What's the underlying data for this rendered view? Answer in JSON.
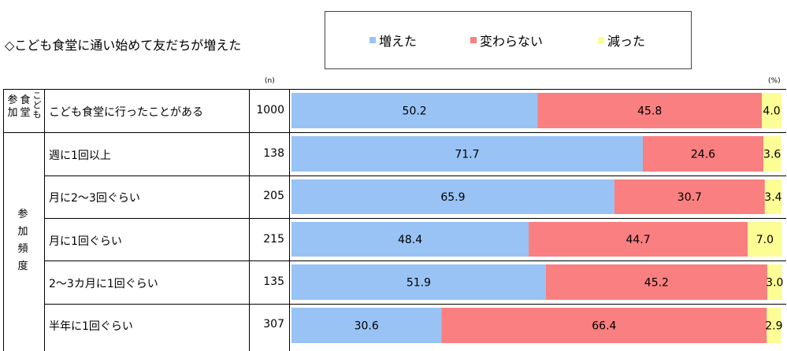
{
  "title": "◇こども食堂に通い始めて友だちが増えた",
  "legend": [
    {
      "label": "増えた",
      "color": "#99c3f4"
    },
    {
      "label": "変わらない",
      "color": "#f97f80"
    },
    {
      "label": "減った",
      "color": "#fdfd96"
    }
  ],
  "unit_n": "(n)",
  "unit_pct": "(%)",
  "group_top_a": "参加",
  "group_top_b": "食堂",
  "group_top_c": "こども",
  "group_freq": "参加頻度",
  "chart_data": {
    "type": "bar",
    "orientation": "horizontal",
    "stacked": true,
    "xlim": [
      0,
      100
    ],
    "categories": [
      "こども食堂に行ったことがある",
      "週に1回以上",
      "月に2～3回ぐらい",
      "月に1回ぐらい",
      "2～3カ月に1回ぐらい",
      "半年に1回ぐらい"
    ],
    "n": [
      "1000",
      "138",
      "205",
      "215",
      "135",
      "307"
    ],
    "series": [
      {
        "name": "増えた",
        "color": "#99c3f4",
        "values": [
          50.2,
          71.7,
          65.9,
          48.4,
          51.9,
          30.6
        ]
      },
      {
        "name": "変わらない",
        "color": "#f97f80",
        "values": [
          45.8,
          24.6,
          30.7,
          44.7,
          45.2,
          66.4
        ]
      },
      {
        "name": "減った",
        "color": "#fdfd96",
        "values": [
          4.0,
          3.6,
          3.4,
          7.0,
          3.0,
          2.9
        ]
      }
    ]
  }
}
